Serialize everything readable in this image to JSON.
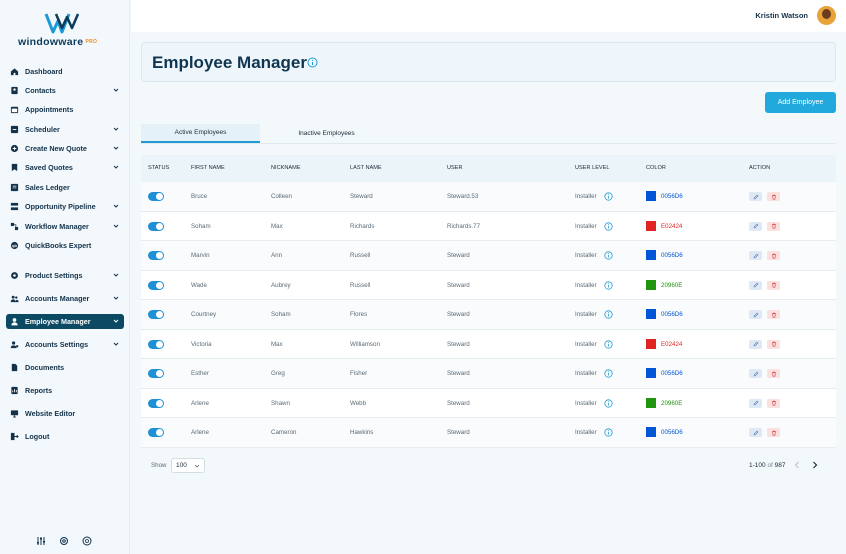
{
  "brand": {
    "name": "windowware",
    "tier": "PRO"
  },
  "user": {
    "name": "Kristin Watson"
  },
  "sidebar": {
    "items": [
      {
        "label": "Dashboard",
        "icon": "home-icon",
        "chevron": false
      },
      {
        "label": "Contacts",
        "icon": "contacts-icon",
        "chevron": true
      },
      {
        "label": "Appointments",
        "icon": "calendar-icon",
        "chevron": false
      },
      {
        "label": "Scheduler",
        "icon": "scheduler-icon",
        "chevron": true
      },
      {
        "label": "Create New Quote",
        "icon": "plus-circle-icon",
        "chevron": true
      },
      {
        "label": "Saved Quotes",
        "icon": "bookmark-icon",
        "chevron": true
      },
      {
        "label": "Sales Ledger",
        "icon": "ledger-icon",
        "chevron": false
      },
      {
        "label": "Opportunity Pipeline",
        "icon": "pipeline-icon",
        "chevron": true
      },
      {
        "label": "Workflow Manager",
        "icon": "workflow-icon",
        "chevron": true
      },
      {
        "label": "QuickBooks Expert",
        "icon": "quickbooks-icon",
        "chevron": false
      },
      {
        "label": "Product Settings",
        "icon": "gear-icon",
        "chevron": true
      },
      {
        "label": "Accounts Manager",
        "icon": "users-icon",
        "chevron": true
      },
      {
        "label": "Employee Manager",
        "icon": "employee-icon",
        "chevron": true,
        "active": true
      },
      {
        "label": "Accounts Settings",
        "icon": "user-gear-icon",
        "chevron": true
      },
      {
        "label": "Documents",
        "icon": "document-icon",
        "chevron": false
      },
      {
        "label": "Reports",
        "icon": "report-icon",
        "chevron": false
      },
      {
        "label": "Website Editor",
        "icon": "monitor-icon",
        "chevron": false
      },
      {
        "label": "Logout",
        "icon": "logout-icon",
        "chevron": false
      }
    ],
    "bottom_icons": [
      "sliders-icon",
      "settings-icon",
      "help-icon"
    ]
  },
  "header": {
    "title": "Employee Manager"
  },
  "actions": {
    "add_employee": "Add Employee"
  },
  "tabs": [
    {
      "label": "Active Employees",
      "active": true
    },
    {
      "label": "Inactive Employees",
      "active": false
    }
  ],
  "table": {
    "columns": [
      "STATUS",
      "FIRST NAME",
      "NICKNAME",
      "LAST NAME",
      "USER",
      "USER LEVEL",
      "COLOR",
      "ACTION"
    ],
    "rows": [
      {
        "active": true,
        "first": "Bruce",
        "nick": "Colleen",
        "last": "Steward",
        "user": "Steward.53",
        "level": "Installer",
        "color": "0056D6"
      },
      {
        "active": true,
        "first": "Soham",
        "nick": "Max",
        "last": "Richards",
        "user": "Richards.77",
        "level": "Installer",
        "color": "E02424"
      },
      {
        "active": true,
        "first": "Marvin",
        "nick": "Ann",
        "last": "Russell",
        "user": "Steward",
        "level": "Installer",
        "color": "0056D6"
      },
      {
        "active": true,
        "first": "Wade",
        "nick": "Aubrey",
        "last": "Russell",
        "user": "Steward",
        "level": "Installer",
        "color": "20960E"
      },
      {
        "active": true,
        "first": "Courtney",
        "nick": "Soham",
        "last": "Flores",
        "user": "Steward",
        "level": "Installer",
        "color": "0056D6"
      },
      {
        "active": true,
        "first": "Victoria",
        "nick": "Max",
        "last": "Williamson",
        "user": "Steward",
        "level": "Installer",
        "color": "E02424"
      },
      {
        "active": true,
        "first": "Esther",
        "nick": "Greg",
        "last": "Fisher",
        "user": "Steward",
        "level": "Installer",
        "color": "0056D6"
      },
      {
        "active": true,
        "first": "Arlene",
        "nick": "Shawn",
        "last": "Webb",
        "user": "Steward",
        "level": "Installer",
        "color": "20960E"
      },
      {
        "active": true,
        "first": "Arlene",
        "nick": "Cameron",
        "last": "Hawkins",
        "user": "Steward",
        "level": "Installer",
        "color": "0056D6"
      }
    ]
  },
  "footer": {
    "show_label": "Show",
    "page_size": "100",
    "range": "1-100",
    "of_label": "of",
    "total": "987"
  }
}
